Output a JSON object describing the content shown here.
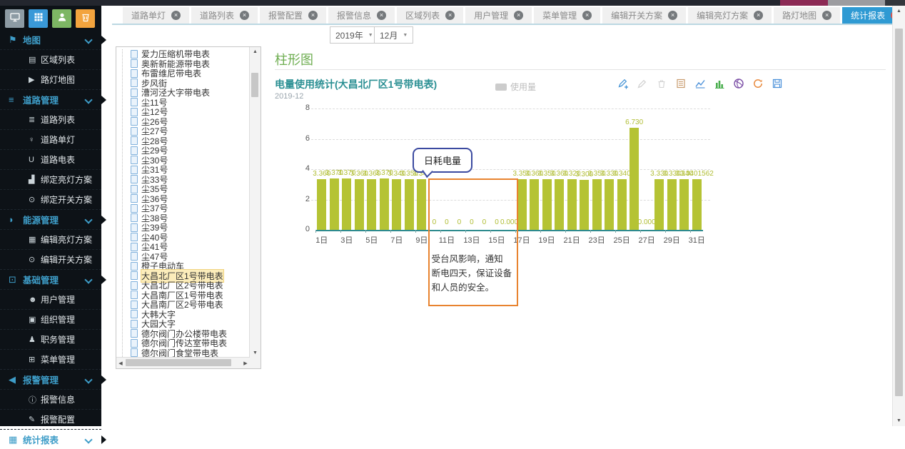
{
  "colors": {
    "accent_blue": "#2f9ad3",
    "bar": "#b5c334",
    "axis_teal": "#2e8b8e",
    "annotation_orange": "#e8832f",
    "callout_blue": "#3b4aa0",
    "sidebar_link": "#3e9dc8",
    "heading_green": "#6fae52",
    "chart_title_teal": "#2a8f93",
    "close_red": "#d9534f"
  },
  "header_buttons": [
    {
      "icon": "monitor-icon",
      "color": "#8d9ba4"
    },
    {
      "icon": "grid-icon",
      "color": "#3a99d8"
    },
    {
      "icon": "user-icon",
      "color": "#7db664"
    },
    {
      "icon": "bin-icon",
      "color": "#f3a43e"
    }
  ],
  "sidebar": {
    "sections": [
      {
        "label": "地图",
        "icon": "flag-icon",
        "items": [
          {
            "label": "区域列表",
            "icon": "area-list-icon"
          },
          {
            "label": "路灯地图",
            "icon": "location-arrow-icon"
          }
        ]
      },
      {
        "label": "道路管理",
        "icon": "menu-bars-icon",
        "items": [
          {
            "label": "道路列表",
            "icon": "road-list-icon"
          },
          {
            "label": "道路单灯",
            "icon": "lamp-pin-icon"
          },
          {
            "label": "道路电表",
            "icon": "meter-icon"
          },
          {
            "label": "绑定亮灯方案",
            "icon": "bind-light-icon"
          },
          {
            "label": "绑定开关方案",
            "icon": "power-icon"
          }
        ]
      },
      {
        "label": "能源管理",
        "icon": "rss-icon",
        "items": [
          {
            "label": "编辑亮灯方案",
            "icon": "edit-light-icon"
          },
          {
            "label": "编辑开关方案",
            "icon": "power-icon"
          }
        ]
      },
      {
        "label": "基础管理",
        "icon": "qrcode-icon",
        "items": [
          {
            "label": "用户管理",
            "icon": "users-icon"
          },
          {
            "label": "组织管理",
            "icon": "org-icon"
          },
          {
            "label": "职务管理",
            "icon": "role-icon"
          },
          {
            "label": "菜单管理",
            "icon": "th-grid-icon"
          }
        ]
      },
      {
        "label": "报警管理",
        "icon": "speaker-icon",
        "items": [
          {
            "label": "报警信息",
            "icon": "info-icon"
          },
          {
            "label": "报警配置",
            "icon": "config-icon"
          }
        ]
      },
      {
        "label": "统计报表",
        "icon": "table-icon",
        "items": []
      }
    ]
  },
  "tabs": [
    {
      "label": "道路单灯",
      "active": false
    },
    {
      "label": "道路列表",
      "active": false
    },
    {
      "label": "报警配置",
      "active": false
    },
    {
      "label": "报警信息",
      "active": false
    },
    {
      "label": "区域列表",
      "active": false
    },
    {
      "label": "用户管理",
      "active": false
    },
    {
      "label": "菜单管理",
      "active": false
    },
    {
      "label": "编辑开关方案",
      "active": false
    },
    {
      "label": "编辑亮灯方案",
      "active": false
    },
    {
      "label": "路灯地图",
      "active": false
    },
    {
      "label": "统计报表",
      "active": true
    }
  ],
  "filters": {
    "year": "2019年",
    "month": "12月"
  },
  "tree": {
    "selected": "大昌北厂区1号带电表",
    "items": [
      "爱力压缩机带电表",
      "奥新新能源带电表",
      "布雷维尼带电表",
      "步风街",
      "漕河泾大字带电表",
      "尘11号",
      "尘12号",
      "尘26号",
      "尘27号",
      "尘28号",
      "尘29号",
      "尘30号",
      "尘31号",
      "尘33号",
      "尘35号",
      "尘36号",
      "尘37号",
      "尘38号",
      "尘39号",
      "尘40号",
      "尘41号",
      "尘47号",
      "橙子电动车",
      "大昌北厂区1号带电表",
      "大昌北厂区2号带电表",
      "大昌南厂区1号带电表",
      "大昌南厂区2号带电表",
      "大韩大字",
      "大园大字",
      "德尔阀门办公楼带电表",
      "德尔阀门传达室带电表",
      "德尔阀门食堂带电表"
    ]
  },
  "page": {
    "section_title": "柱形图"
  },
  "chart_toolbar": {
    "icons": [
      "edit-add-icon",
      "edit-icon",
      "delete-icon",
      "data-view-icon",
      "line-chart-icon",
      "bar-chart-icon",
      "pie-chart-icon",
      "refresh-icon",
      "save-icon"
    ]
  },
  "chart_data": {
    "type": "bar",
    "title": "电量使用统计(大昌北厂区1号带电表)",
    "subtitle": "2019-12",
    "series_name": "使用量",
    "legend_label": "使用量",
    "legend_position": "top",
    "grid": true,
    "ylim": [
      0,
      8
    ],
    "yticks": [
      0,
      2,
      4,
      6,
      8
    ],
    "num_days": 31,
    "x_unit": "日",
    "x_tick_labels": [
      "1日",
      "3日",
      "5日",
      "7日",
      "9日",
      "11日",
      "13日",
      "15日",
      "17日",
      "19日",
      "21日",
      "23日",
      "25日",
      "27日",
      "29日",
      "31日"
    ],
    "values": [
      3.36,
      3.37,
      3.37,
      3.36,
      3.36,
      3.37,
      3.34,
      3.35,
      3.34,
      0,
      0,
      0,
      0,
      0,
      0,
      0,
      3.35,
      3.36,
      3.35,
      3.36,
      3.32,
      3.3,
      3.35,
      3.33,
      3.34,
      6.73,
      0,
      3.33,
      3.33,
      3.34,
      3.3401562
    ],
    "value_labels": [
      "3.360",
      "3.370",
      "3.370",
      "3.360",
      "3.360",
      "3.370",
      "3.340",
      "3.350",
      "3.340",
      "0",
      "0",
      "0",
      "0",
      "0",
      "0",
      "0.000",
      "3.350",
      "3.360",
      "3.350",
      "3.360",
      "3.320",
      "3.300",
      "3.350",
      "3.330",
      "3.340",
      "6.730",
      "0.000",
      "3.330",
      "3.330",
      "3.340",
      "3.3401562"
    ],
    "annotations": {
      "callout": {
        "text": "日耗电量",
        "anchor_day": 10
      },
      "region": {
        "from_day": 10,
        "to_day": 16,
        "note": "受台风影响，通知\n断电四天，保证设备\n和人员的安全。"
      }
    }
  }
}
